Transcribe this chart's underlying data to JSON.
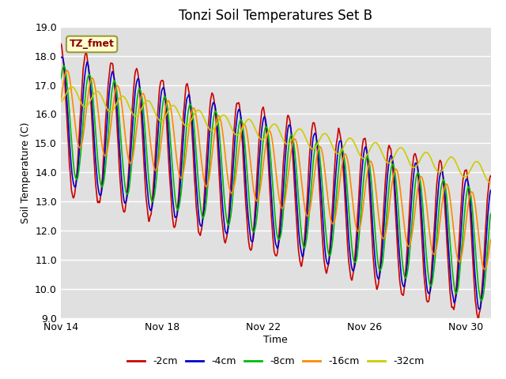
{
  "title": "Tonzi Soil Temperatures Set B",
  "xlabel": "Time",
  "ylabel": "Soil Temperature (C)",
  "ylim": [
    9.0,
    19.0
  ],
  "yticks": [
    9.0,
    10.0,
    11.0,
    12.0,
    13.0,
    14.0,
    15.0,
    16.0,
    17.0,
    18.0,
    19.0
  ],
  "total_days": 17,
  "xtick_positions": [
    0,
    4,
    8,
    12,
    16
  ],
  "xtick_labels": [
    "Nov 14",
    "Nov 18",
    "Nov 22",
    "Nov 26",
    "Nov 30"
  ],
  "series": [
    {
      "label": "-2cm",
      "color": "#cc0000",
      "lw": 1.2
    },
    {
      "label": "-4cm",
      "color": "#0000cc",
      "lw": 1.2
    },
    {
      "label": "-8cm",
      "color": "#00bb00",
      "lw": 1.2
    },
    {
      "label": "-16cm",
      "color": "#ff8800",
      "lw": 1.2
    },
    {
      "label": "-32cm",
      "color": "#cccc00",
      "lw": 1.2
    }
  ],
  "annotation_label": "TZ_fmet",
  "bg_color": "#e0e0e0",
  "title_fontsize": 12,
  "label_fontsize": 9,
  "tick_fontsize": 9
}
